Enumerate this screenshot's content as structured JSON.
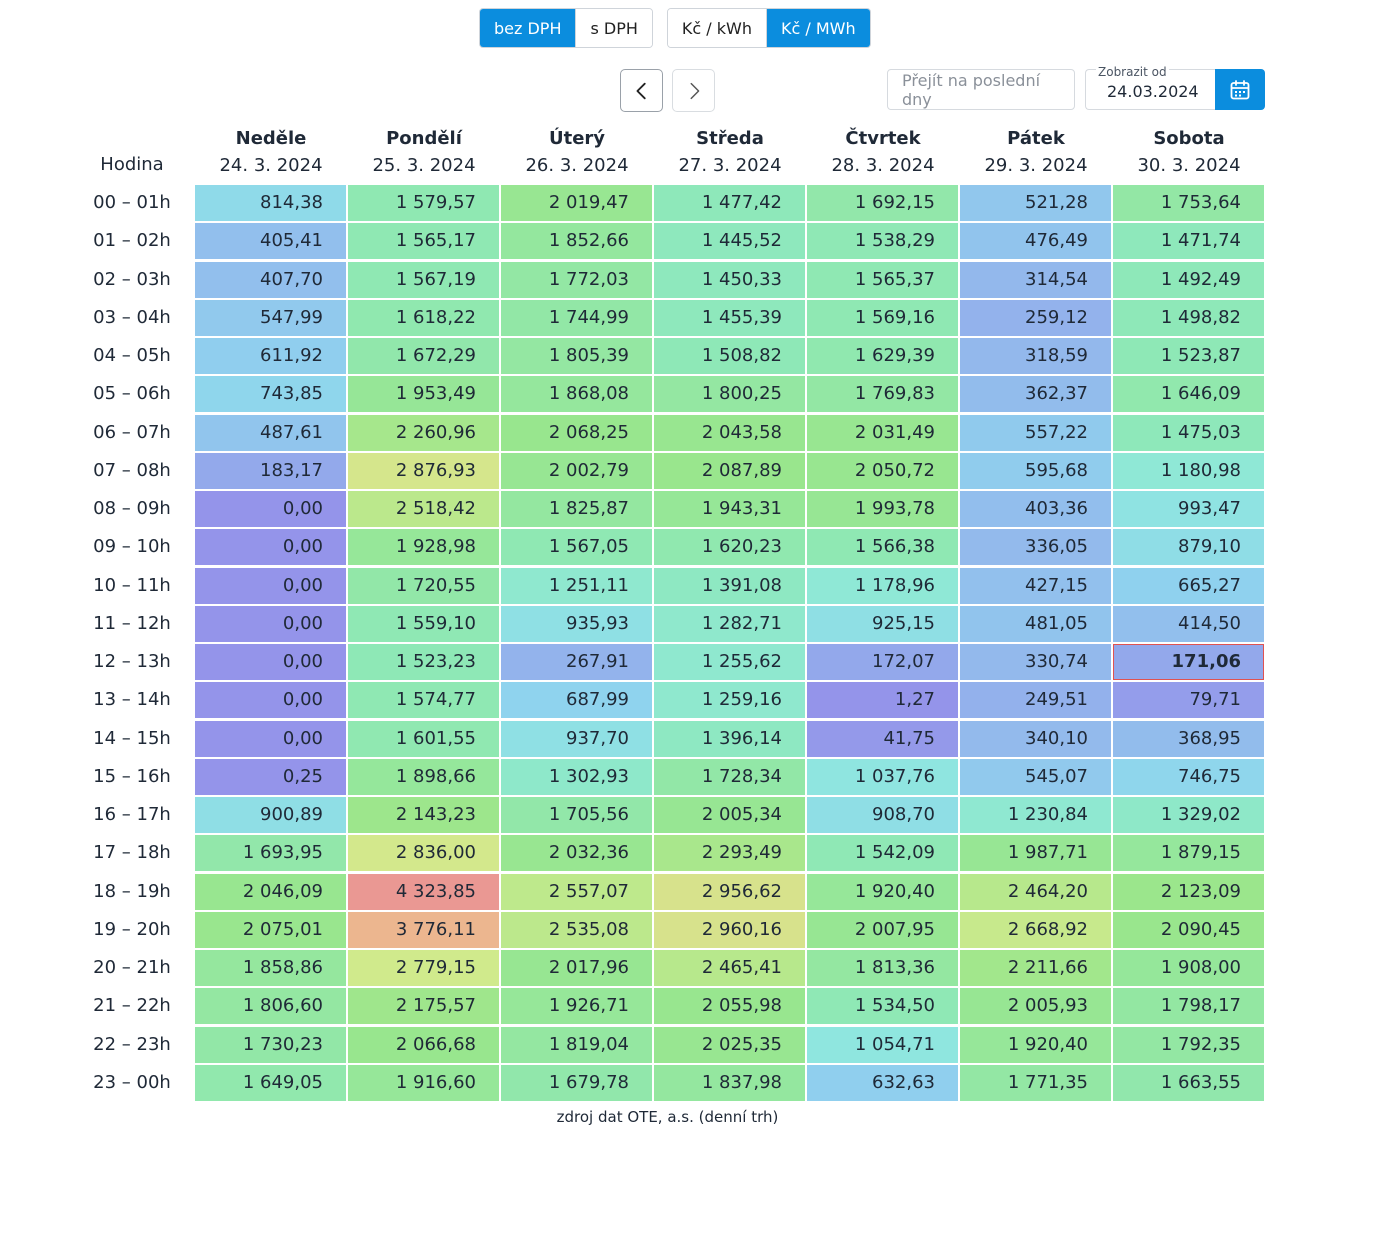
{
  "toggles": {
    "vat": [
      {
        "label": "bez DPH",
        "active": true
      },
      {
        "label": "s DPH",
        "active": false
      }
    ],
    "unit": [
      {
        "label": "Kč / kWh",
        "active": false
      },
      {
        "label": "Kč / MWh",
        "active": true
      }
    ]
  },
  "nav": {
    "prev_icon": "chevron-left-icon",
    "next_icon": "chevron-right-icon"
  },
  "quick_jump": {
    "placeholder": "Přejít na poslední dny"
  },
  "date_picker": {
    "label": "Zobrazit od",
    "value": "24.03.2024",
    "icon": "calendar-icon"
  },
  "table": {
    "hour_header": "Hodina",
    "days": [
      {
        "name": "Neděle",
        "date": "24. 3. 2024"
      },
      {
        "name": "Pondělí",
        "date": "25. 3. 2024"
      },
      {
        "name": "Úterý",
        "date": "26. 3. 2024"
      },
      {
        "name": "Středa",
        "date": "27. 3. 2024"
      },
      {
        "name": "Čtvrtek",
        "date": "28. 3. 2024"
      },
      {
        "name": "Pátek",
        "date": "29. 3. 2024"
      },
      {
        "name": "Sobota",
        "date": "30. 3. 2024"
      }
    ],
    "hours": [
      "00 – 01h",
      "01 – 02h",
      "02 – 03h",
      "03 – 04h",
      "04 – 05h",
      "05 – 06h",
      "06 – 07h",
      "07 – 08h",
      "08 – 09h",
      "09 – 10h",
      "10 – 11h",
      "11 – 12h",
      "12 – 13h",
      "13 – 14h",
      "14 – 15h",
      "15 – 16h",
      "16 – 17h",
      "17 – 18h",
      "18 – 19h",
      "19 – 20h",
      "20 – 21h",
      "21 – 22h",
      "22 – 23h",
      "23 – 00h"
    ],
    "rows": [
      [
        "814,38",
        "1 579,57",
        "2 019,47",
        "1 477,42",
        "1 692,15",
        "521,28",
        "1 753,64"
      ],
      [
        "405,41",
        "1 565,17",
        "1 852,66",
        "1 445,52",
        "1 538,29",
        "476,49",
        "1 471,74"
      ],
      [
        "407,70",
        "1 567,19",
        "1 772,03",
        "1 450,33",
        "1 565,37",
        "314,54",
        "1 492,49"
      ],
      [
        "547,99",
        "1 618,22",
        "1 744,99",
        "1 455,39",
        "1 569,16",
        "259,12",
        "1 498,82"
      ],
      [
        "611,92",
        "1 672,29",
        "1 805,39",
        "1 508,82",
        "1 629,39",
        "318,59",
        "1 523,87"
      ],
      [
        "743,85",
        "1 953,49",
        "1 868,08",
        "1 800,25",
        "1 769,83",
        "362,37",
        "1 646,09"
      ],
      [
        "487,61",
        "2 260,96",
        "2 068,25",
        "2 043,58",
        "2 031,49",
        "557,22",
        "1 475,03"
      ],
      [
        "183,17",
        "2 876,93",
        "2 002,79",
        "2 087,89",
        "2 050,72",
        "595,68",
        "1 180,98"
      ],
      [
        "0,00",
        "2 518,42",
        "1 825,87",
        "1 943,31",
        "1 993,78",
        "403,36",
        "993,47"
      ],
      [
        "0,00",
        "1 928,98",
        "1 567,05",
        "1 620,23",
        "1 566,38",
        "336,05",
        "879,10"
      ],
      [
        "0,00",
        "1 720,55",
        "1 251,11",
        "1 391,08",
        "1 178,96",
        "427,15",
        "665,27"
      ],
      [
        "0,00",
        "1 559,10",
        "935,93",
        "1 282,71",
        "925,15",
        "481,05",
        "414,50"
      ],
      [
        "0,00",
        "1 523,23",
        "267,91",
        "1 255,62",
        "172,07",
        "330,74",
        "171,06"
      ],
      [
        "0,00",
        "1 574,77",
        "687,99",
        "1 259,16",
        "1,27",
        "249,51",
        "79,71"
      ],
      [
        "0,00",
        "1 601,55",
        "937,70",
        "1 396,14",
        "41,75",
        "340,10",
        "368,95"
      ],
      [
        "0,25",
        "1 898,66",
        "1 302,93",
        "1 728,34",
        "1 037,76",
        "545,07",
        "746,75"
      ],
      [
        "900,89",
        "2 143,23",
        "1 705,56",
        "2 005,34",
        "908,70",
        "1 230,84",
        "1 329,02"
      ],
      [
        "1 693,95",
        "2 836,00",
        "2 032,36",
        "2 293,49",
        "1 542,09",
        "1 987,71",
        "1 879,15"
      ],
      [
        "2 046,09",
        "4 323,85",
        "2 557,07",
        "2 956,62",
        "1 920,40",
        "2 464,20",
        "2 123,09"
      ],
      [
        "2 075,01",
        "3 776,11",
        "2 535,08",
        "2 960,16",
        "2 007,95",
        "2 668,92",
        "2 090,45"
      ],
      [
        "1 858,86",
        "2 779,15",
        "2 017,96",
        "2 465,41",
        "1 813,36",
        "2 211,66",
        "1 908,00"
      ],
      [
        "1 806,60",
        "2 175,57",
        "1 926,71",
        "2 055,98",
        "1 534,50",
        "2 005,93",
        "1 798,17"
      ],
      [
        "1 730,23",
        "2 066,68",
        "1 819,04",
        "2 025,35",
        "1 054,71",
        "1 920,40",
        "1 792,35"
      ],
      [
        "1 649,05",
        "1 916,60",
        "1 679,78",
        "1 837,98",
        "632,63",
        "1 771,35",
        "1 663,55"
      ]
    ],
    "selected_cell": {
      "row": 12,
      "col": 6
    }
  },
  "source_note": "zdroj dat OTE, a.s. (denní trh)",
  "colors": {
    "accent": "#0b8dde",
    "selected_border": "#e05252",
    "scale": [
      "#9494ea",
      "#93b7ec",
      "#8fd4ee",
      "#8fe8dd",
      "#8ee8b8",
      "#99e68c",
      "#d2ea8c",
      "#ecc08e",
      "#ea9494"
    ]
  }
}
